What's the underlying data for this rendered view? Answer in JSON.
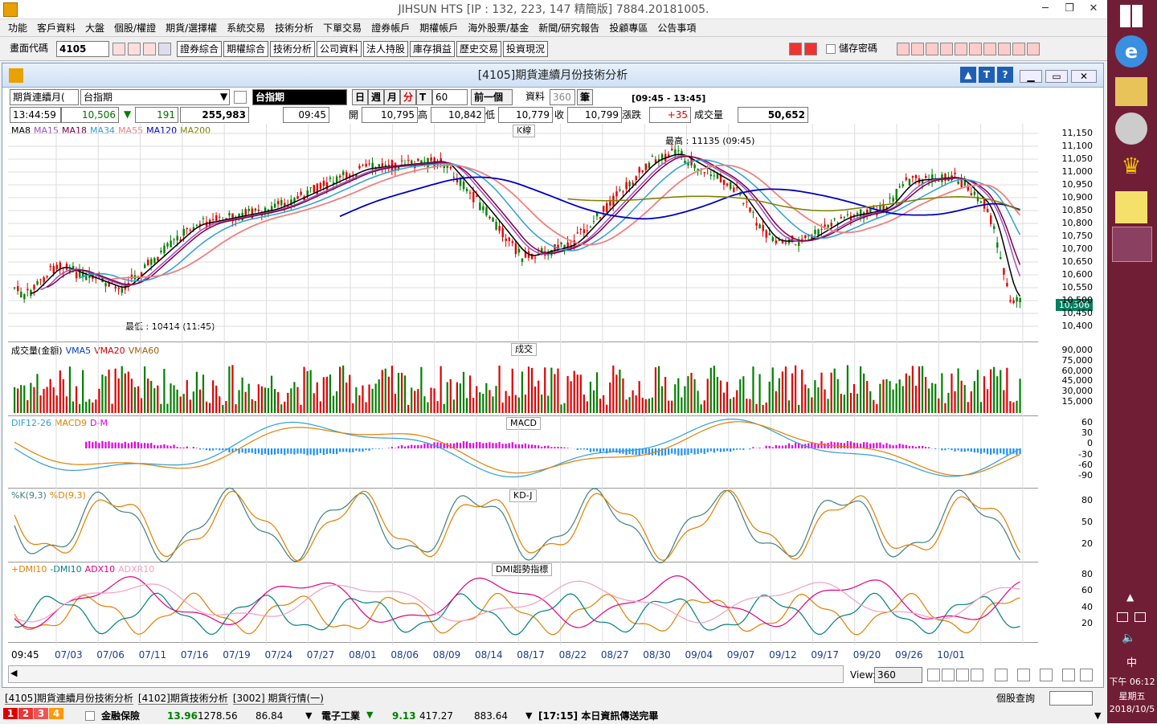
{
  "app": {
    "title": "JIHSUN HTS     [IP : 132, 223, 147 精簡版] 7884.20181005."
  },
  "menu": [
    "功能",
    "客戶資料",
    "大盤",
    "個股/權證",
    "期貨/選擇權",
    "系統交易",
    "技術分析",
    "下單交易",
    "證券帳戶",
    "期權帳戶",
    "海外股票/基金",
    "新聞/研究報告",
    "投顧專區",
    "公告事項"
  ],
  "toolbar": {
    "code_label": "畫面代碼",
    "code_value": "4105",
    "buttons": [
      "證券綜合",
      "期權綜合",
      "技術分析",
      "公司資料",
      "法人持股",
      "庫存損益",
      "歷史交易",
      "投資現況"
    ],
    "save_pw": "儲存密碼"
  },
  "window": {
    "title": "[4105]期貨連續月份技術分析"
  },
  "controls": {
    "product_type": "期貨連續月(",
    "product_name": "台指期",
    "symbol": "台指期",
    "periods": [
      "日",
      "週",
      "月",
      "分",
      "T"
    ],
    "interval": "60",
    "prev": "前一個",
    "data_label": "資料",
    "data_count": "360",
    "unit": "筆",
    "time_range": "[09:45 - 13:45]"
  },
  "quote": {
    "time": "13:44:59",
    "price": "10,506",
    "change": "191",
    "volume": "255,983",
    "bar_time": "09:45",
    "open_label": "開",
    "open": "10,795",
    "high_label": "高",
    "high": "10,842",
    "low_label": "低",
    "low": "10,779",
    "close_label": "收",
    "close": "10,799",
    "chg_label": "漲跌",
    "chg": "+35",
    "vol_label": "成交量",
    "vol": "50,652"
  },
  "panes": {
    "k": {
      "title": "K線",
      "legend": [
        "MA8",
        "MA15",
        "MA18",
        "MA34",
        "MA55",
        "MA120",
        "MA200"
      ],
      "high_note": "最高 : 11135 (09:45)",
      "low_note": "最低 : 10414 (11:45)",
      "last": "10,506",
      "yticks": [
        "11,150",
        "11,100",
        "11,050",
        "11,000",
        "10,950",
        "10,900",
        "10,850",
        "10,800",
        "10,750",
        "10,700",
        "10,650",
        "10,600",
        "10,550",
        "10,500",
        "10,450",
        "10,400"
      ]
    },
    "vol": {
      "title": "成交",
      "legend": [
        "成交量(金額)",
        "VMA5",
        "VMA20",
        "VMA60"
      ],
      "yticks": [
        "90,000",
        "75,000",
        "60,000",
        "45,000",
        "30,000",
        "15,000"
      ]
    },
    "macd": {
      "title": "MACD",
      "legend": [
        "DIF12-26",
        "MACD9",
        "D-M"
      ],
      "yticks": [
        "60",
        "30",
        "0",
        "-30",
        "-60",
        "-90"
      ]
    },
    "kd": {
      "title": "KD-J",
      "legend": [
        "%K(9,3)",
        "%D(9,3)"
      ],
      "yticks": [
        "80",
        "50",
        "20"
      ]
    },
    "dmi": {
      "title": "DMI趨勢指標",
      "legend": [
        "+DMI10",
        "-DMI10",
        "ADX10",
        "ADXR10"
      ],
      "yticks": [
        "80",
        "60",
        "40",
        "20"
      ]
    }
  },
  "xaxis": [
    "09:45",
    "07/03",
    "07/06",
    "07/11",
    "07/16",
    "07/19",
    "07/24",
    "07/27",
    "08/01",
    "08/06",
    "08/09",
    "08/14",
    "08/17",
    "08/22",
    "08/27",
    "08/30",
    "09/04",
    "09/07",
    "09/12",
    "09/17",
    "09/20",
    "09/26",
    "10/01"
  ],
  "view": {
    "label": "View:",
    "value": "360"
  },
  "tabs": [
    "[4105]期貨連續月份技術分析",
    "[4102]期貨技術分析",
    "[3002] 期貨行情(一)"
  ],
  "status": {
    "stock_query": "個股查詢",
    "ticker1_name": "金融保險",
    "ticker1_chg": "13.96",
    "ticker1_val": "1278.56",
    "ticker1_amt": "86.84",
    "ticker2_name": "電子工業",
    "ticker2_chg": "9.13",
    "ticker2_val": "417.27",
    "ticker2_amt": "883.64",
    "message": "[17:15] 本日資訊傳送完畢",
    "tabs": [
      "1",
      "2",
      "3",
      "4"
    ]
  },
  "clock": {
    "time": "下午 06:12",
    "weekday": "星期五",
    "date": "2018/10/5",
    "ime": "中"
  },
  "colors": {
    "ma8": "#000000",
    "ma15": "#a050c8",
    "ma18": "#800040",
    "ma34": "#30a0d0",
    "ma55": "#f08080",
    "ma120": "#0000c0",
    "ma200": "#808000",
    "up": "#e00000",
    "down": "#008000"
  }
}
